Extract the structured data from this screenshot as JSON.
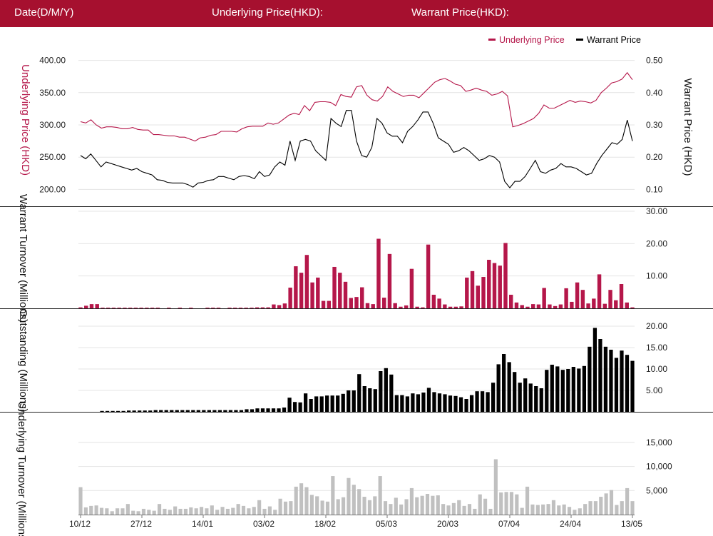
{
  "header": {
    "date_label": "Date(D/M/Y)",
    "underlying_label": "Underlying Price(HKD):",
    "warrant_label": "Warrant Price(HKD):"
  },
  "colors": {
    "header_bg": "#a6102f",
    "underlying": "#b5174a",
    "warrant": "#000000",
    "warrant_turnover": "#b5174a",
    "outstanding": "#000000",
    "underlying_turnover": "#c0c0c0"
  },
  "chart_data": [
    {
      "type": "line",
      "name": "price-chart",
      "legend": {
        "placement": "top-right",
        "entries": [
          "Underlying Price",
          "Warrant Price"
        ]
      },
      "ylabel_left": "Underlying Price (HKD)",
      "ylabel_right": "Warrant  Price (HKD)",
      "ylim_left": [
        175,
        425
      ],
      "ylim_right": [
        0.05,
        0.55
      ],
      "yticks_left": [
        "400.00",
        "350.00",
        "300.00",
        "250.00",
        "200.00"
      ],
      "yticks_left_values": [
        400,
        350,
        300,
        250,
        200
      ],
      "yticks_right": [
        "0.50",
        "0.40",
        "0.30",
        "0.20",
        "0.10"
      ],
      "yticks_right_values": [
        0.5,
        0.4,
        0.3,
        0.2,
        0.1
      ],
      "series": [
        {
          "name": "Underlying Price",
          "axis": "left",
          "values": [
            305,
            303,
            308,
            300,
            295,
            297,
            297,
            296,
            294,
            294,
            296,
            293,
            292,
            292,
            285,
            285,
            284,
            283,
            283,
            281,
            281,
            278,
            275,
            280,
            281,
            284,
            285,
            290,
            290,
            290,
            289,
            294,
            297,
            298,
            298,
            298,
            303,
            301,
            303,
            309,
            315,
            318,
            316,
            330,
            322,
            335,
            336,
            336,
            335,
            330,
            347,
            344,
            343,
            359,
            361,
            346,
            339,
            337,
            344,
            359,
            352,
            348,
            344,
            346,
            346,
            342,
            350,
            358,
            366,
            370,
            372,
            368,
            363,
            361,
            352,
            354,
            357,
            354,
            352,
            346,
            348,
            352,
            345,
            297,
            299,
            302,
            306,
            310,
            318,
            331,
            326,
            326,
            330,
            334,
            338,
            335,
            337,
            336,
            334,
            338,
            350,
            357,
            365,
            367,
            371,
            381,
            370
          ]
        },
        {
          "name": "Warrant Price",
          "axis": "right",
          "values": [
            0.205,
            0.195,
            0.21,
            0.19,
            0.17,
            0.185,
            0.18,
            0.175,
            0.17,
            0.165,
            0.16,
            0.165,
            0.155,
            0.15,
            0.145,
            0.13,
            0.128,
            0.122,
            0.12,
            0.12,
            0.12,
            0.115,
            0.107,
            0.12,
            0.122,
            0.128,
            0.13,
            0.14,
            0.14,
            0.135,
            0.13,
            0.14,
            0.143,
            0.14,
            0.133,
            0.155,
            0.14,
            0.145,
            0.17,
            0.185,
            0.175,
            0.25,
            0.19,
            0.25,
            0.255,
            0.25,
            0.22,
            0.205,
            0.19,
            0.32,
            0.305,
            0.295,
            0.345,
            0.345,
            0.25,
            0.205,
            0.2,
            0.23,
            0.32,
            0.305,
            0.275,
            0.265,
            0.265,
            0.245,
            0.28,
            0.295,
            0.315,
            0.34,
            0.34,
            0.305,
            0.26,
            0.25,
            0.24,
            0.215,
            0.22,
            0.23,
            0.22,
            0.205,
            0.19,
            0.195,
            0.205,
            0.2,
            0.185,
            0.125,
            0.105,
            0.125,
            0.125,
            0.14,
            0.165,
            0.19,
            0.155,
            0.15,
            0.16,
            0.165,
            0.18,
            0.17,
            0.17,
            0.165,
            0.155,
            0.145,
            0.15,
            0.18,
            0.205,
            0.225,
            0.245,
            0.24,
            0.255,
            0.315,
            0.25
          ]
        }
      ]
    },
    {
      "type": "bar",
      "name": "warrant-turnover-chart",
      "ylabel": "Warrant  Turnover (Millions)",
      "ylim": [
        0,
        30
      ],
      "yticks": [
        "30.00",
        "20.00",
        "10.00"
      ],
      "yticks_values": [
        30,
        20,
        10
      ],
      "values": [
        0.3,
        0.8,
        1.3,
        1.3,
        0.2,
        0.2,
        0.2,
        0.2,
        0.2,
        0.2,
        0.2,
        0.2,
        0.2,
        0.2,
        0.2,
        0,
        0.2,
        0,
        0.2,
        0,
        0.2,
        0,
        0,
        0.2,
        0.2,
        0.2,
        0,
        0.2,
        0.2,
        0.2,
        0.2,
        0.2,
        0.3,
        0.3,
        0.3,
        1.2,
        1,
        1.5,
        6.4,
        13,
        11,
        16.5,
        8,
        9.5,
        2.3,
        2.3,
        12.8,
        11,
        8.2,
        3.2,
        3.5,
        6.5,
        1.6,
        1.3,
        21.5,
        3.3,
        16.8,
        1.6,
        0.5,
        0.9,
        12.2,
        0.5,
        0.3,
        19.7,
        4.2,
        3,
        1.2,
        0.5,
        0.5,
        0.6,
        9.5,
        11.5,
        7,
        9.7,
        15,
        14,
        13.2,
        20.2,
        4.2,
        1.8,
        1,
        0.5,
        1.3,
        1.2,
        6.3,
        1.2,
        0.7,
        1.2,
        6.2,
        2,
        8,
        5.7,
        1.5,
        3,
        10.5,
        1.4,
        5.7,
        2.5,
        7.5,
        1.8,
        0.3
      ]
    },
    {
      "type": "bar",
      "name": "outstanding-chart",
      "ylabel": "Outstanding (Millions)",
      "ylim": [
        0,
        22
      ],
      "yticks": [
        "20.00",
        "15.00",
        "10.00",
        "5.00"
      ],
      "yticks_values": [
        20,
        15,
        10,
        5
      ],
      "values": [
        0,
        0,
        0,
        0,
        0.2,
        0.2,
        0.2,
        0.2,
        0.2,
        0.3,
        0.3,
        0.3,
        0.3,
        0.3,
        0.4,
        0.4,
        0.4,
        0.4,
        0.4,
        0.4,
        0.4,
        0.4,
        0.4,
        0.4,
        0.4,
        0.4,
        0.4,
        0.4,
        0.4,
        0.4,
        0.4,
        0.6,
        0.6,
        0.8,
        0.8,
        0.8,
        0.8,
        0.8,
        1,
        3.3,
        2.3,
        2.2,
        4.3,
        3,
        3.6,
        3.6,
        3.8,
        3.8,
        3.8,
        4.2,
        5,
        5,
        8.8,
        6,
        5.5,
        5.3,
        9.5,
        10.2,
        8.7,
        3.9,
        3.9,
        3.6,
        4.3,
        4.1,
        4.5,
        5.6,
        4.6,
        4.3,
        4.1,
        3.8,
        3.7,
        3.4,
        3,
        3.9,
        4.8,
        4.8,
        4.6,
        6.8,
        11.1,
        13.5,
        11.6,
        9.3,
        6.8,
        7.8,
        6.6,
        6,
        5.5,
        9.8,
        11,
        10.6,
        9.8,
        10,
        10.5,
        10.1,
        10.7,
        15.2,
        19.6,
        17,
        15.2,
        14.5,
        12.6,
        14.3,
        13.3,
        11.9
      ]
    },
    {
      "type": "bar",
      "name": "underlying-turnover-chart",
      "ylabel": "Underlying Turnover (Millions)",
      "ylim": [
        0,
        17500
      ],
      "yticks": [
        "15,000",
        "10,000",
        "5,000"
      ],
      "yticks_values": [
        15000,
        10000,
        5000
      ],
      "values": [
        5700,
        1500,
        1800,
        1900,
        1400,
        1300,
        700,
        1300,
        1300,
        2200,
        800,
        700,
        1200,
        1000,
        800,
        2200,
        1200,
        1000,
        1700,
        1200,
        1200,
        1500,
        1300,
        1600,
        1300,
        1900,
        1000,
        1600,
        1200,
        1400,
        2200,
        1800,
        1300,
        1600,
        3000,
        1200,
        1700,
        1000,
        3300,
        2700,
        2800,
        5800,
        6500,
        5700,
        4100,
        3800,
        2900,
        2700,
        8000,
        3200,
        3600,
        7600,
        6200,
        5300,
        3700,
        3000,
        3800,
        8000,
        2800,
        2200,
        3500,
        2100,
        3200,
        5500,
        3600,
        3900,
        4300,
        3900,
        4000,
        2200,
        1900,
        2400,
        3000,
        1800,
        2200,
        1200,
        4200,
        3300,
        1200,
        11500,
        4600,
        4700,
        4700,
        4200,
        1400,
        5800,
        2100,
        2000,
        2100,
        2200,
        3000,
        1900,
        2100,
        1600,
        1000,
        1300,
        2200,
        2800,
        2800,
        3700,
        4400,
        5100,
        2000,
        2800,
        5500,
        2800
      ]
    }
  ],
  "x_axis": {
    "tick_labels": [
      "10/12",
      "27/12",
      "14/01",
      "03/02",
      "18/02",
      "05/03",
      "20/03",
      "07/04",
      "24/04",
      "13/05"
    ]
  }
}
